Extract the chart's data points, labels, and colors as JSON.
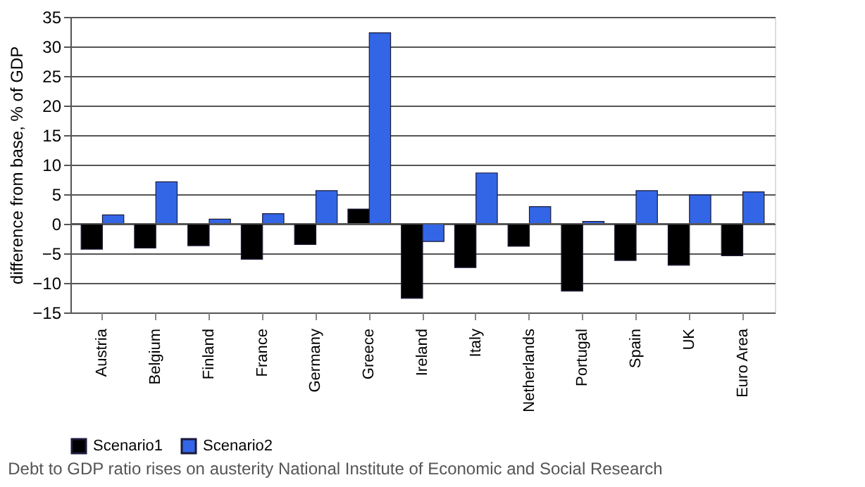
{
  "chart_data": {
    "type": "bar",
    "ylabel": "difference from base, % of GDP",
    "categories": [
      "Austria",
      "Belgium",
      "Finland",
      "France",
      "Germany",
      "Greece",
      "Ireland",
      "Italy",
      "Netherlands",
      "Portugal",
      "Spain",
      "UK",
      "Euro Area"
    ],
    "series": [
      {
        "name": "Scenario1",
        "color": "#000000",
        "values": [
          -4.3,
          -4.1,
          -3.7,
          -6.0,
          -3.5,
          2.5,
          -12.6,
          -7.4,
          -3.8,
          -11.4,
          -6.2,
          -7.0,
          -5.4
        ]
      },
      {
        "name": "Scenario2",
        "color": "#3366e6",
        "values": [
          1.5,
          7.1,
          0.8,
          1.7,
          5.6,
          32.3,
          -3.0,
          8.6,
          2.9,
          0.4,
          5.6,
          4.9,
          5.4
        ]
      }
    ],
    "ylim": [
      -15,
      35
    ],
    "yticks": [
      -15,
      -10,
      -5,
      0,
      5,
      10,
      15,
      20,
      25,
      30,
      35
    ],
    "grid": "y",
    "legend": "bottom",
    "annotations": [
      "Debt to GDP ratio rises on austerity",
      "National Institute of Economic and Social Research"
    ]
  }
}
